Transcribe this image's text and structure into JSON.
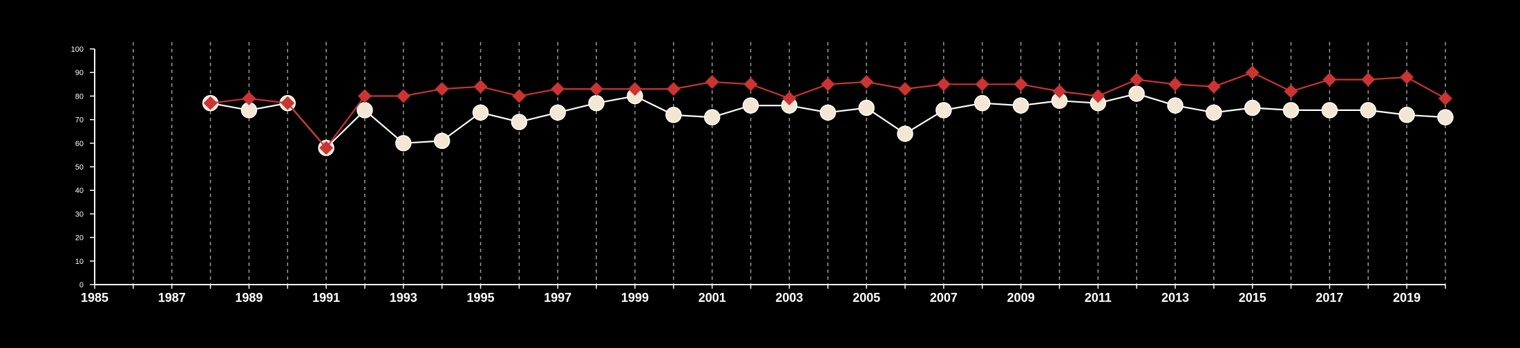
{
  "chart_data": {
    "type": "line",
    "title": "",
    "xlabel": "",
    "ylabel": "",
    "xlim": [
      1985,
      2020
    ],
    "ylim": [
      0,
      100
    ],
    "x_ticks": [
      1985,
      1987,
      1989,
      1991,
      1993,
      1995,
      1997,
      1999,
      2001,
      2003,
      2005,
      2007,
      2009,
      2011,
      2013,
      2015,
      2017,
      2019
    ],
    "y_ticks": [
      0,
      10,
      20,
      30,
      40,
      50,
      60,
      70,
      80,
      90,
      100
    ],
    "vertical_gridlines": [
      1986,
      1987,
      1988,
      1989,
      1990,
      1991,
      1992,
      1993,
      1994,
      1995,
      1996,
      1997,
      1998,
      1999,
      2000,
      2001,
      2002,
      2003,
      2004,
      2005,
      2006,
      2007,
      2008,
      2009,
      2010,
      2011,
      2012,
      2013,
      2014,
      2015,
      2016,
      2017,
      2018,
      2019,
      2020
    ],
    "grid": "vertical dashed",
    "legend": "none",
    "x": [
      1988,
      1989,
      1990,
      1991,
      1992,
      1993,
      1994,
      1995,
      1996,
      1997,
      1998,
      1999,
      2000,
      2001,
      2002,
      2003,
      2004,
      2005,
      2006,
      2007,
      2008,
      2009,
      2010,
      2011,
      2012,
      2013,
      2014,
      2015,
      2016,
      2017,
      2018,
      2019,
      2020
    ],
    "series": [
      {
        "marker": "circle",
        "color": "#ffffff",
        "marker_fill": "#f3e6d2",
        "values": [
          77,
          74,
          77,
          58,
          74,
          60,
          61,
          73,
          69,
          73,
          77,
          80,
          72,
          71,
          76,
          76,
          73,
          75,
          64,
          74,
          77,
          76,
          78,
          77,
          81,
          76,
          73,
          75,
          74,
          74,
          74,
          72,
          71
        ]
      },
      {
        "marker": "diamond",
        "color": "#cc3333",
        "marker_fill": "#cc3333",
        "values": [
          77,
          79,
          77,
          58,
          80,
          80,
          83,
          84,
          80,
          83,
          83,
          83,
          83,
          86,
          85,
          79,
          85,
          86,
          83,
          85,
          85,
          85,
          82,
          80,
          87,
          85,
          84,
          90,
          82,
          87,
          87,
          88,
          79
        ]
      }
    ]
  }
}
